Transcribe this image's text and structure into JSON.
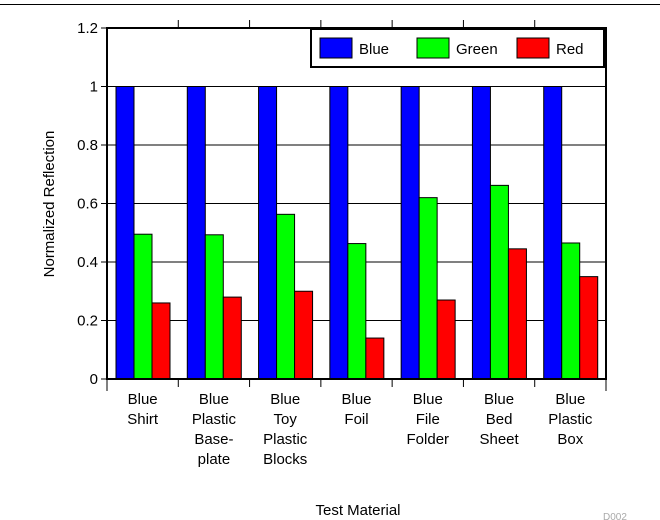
{
  "chart_data": {
    "type": "bar",
    "categories": [
      [
        "Blue",
        "Shirt"
      ],
      [
        "Blue",
        "Plastic",
        "Base-",
        "plate"
      ],
      [
        "Blue",
        "Toy",
        "Plastic",
        "Blocks"
      ],
      [
        "Blue",
        "Foil"
      ],
      [
        "Blue",
        "File",
        "Folder"
      ],
      [
        "Blue",
        "Bed",
        "Sheet"
      ],
      [
        "Blue",
        "Plastic",
        "Box"
      ]
    ],
    "series": [
      {
        "name": "Blue",
        "color": "#0000ff",
        "values": [
          1.0,
          1.0,
          1.0,
          1.0,
          1.0,
          1.0,
          1.0
        ]
      },
      {
        "name": "Green",
        "color": "#00ff00",
        "values": [
          0.495,
          0.493,
          0.563,
          0.463,
          0.62,
          0.662,
          0.465
        ]
      },
      {
        "name": "Red",
        "color": "#ff0000",
        "values": [
          0.26,
          0.28,
          0.3,
          0.14,
          0.27,
          0.445,
          0.35
        ]
      }
    ],
    "xlabel": "Test Material",
    "ylabel": "Normalized Reflection",
    "ylim": [
      0,
      1.2
    ],
    "yticks": [
      "0",
      "0.2",
      "0.4",
      "0.6",
      "0.8",
      "1",
      "1.2"
    ],
    "grid": true,
    "legend_position": "top-right",
    "figure_id": "D002"
  }
}
